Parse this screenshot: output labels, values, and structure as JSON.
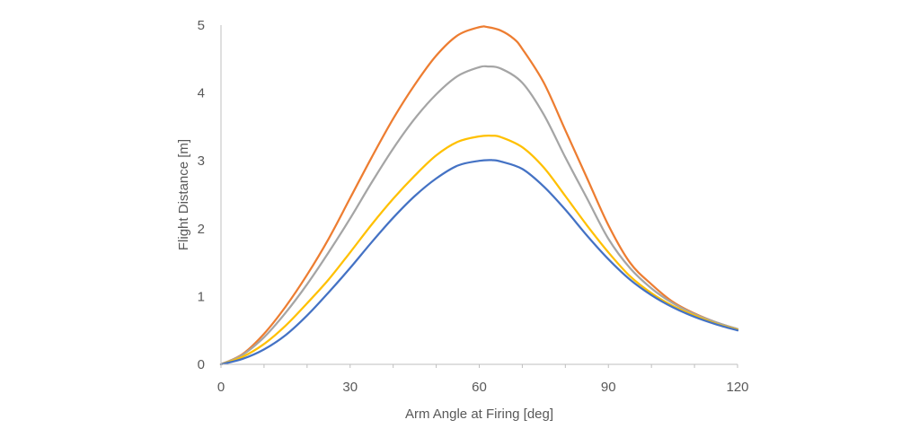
{
  "chart_data": {
    "type": "line",
    "xlabel": "Arm Angle at Firing [deg]",
    "ylabel": "Flight Distance [m]",
    "xlim": [
      0,
      120
    ],
    "ylim": [
      0,
      5
    ],
    "xticks": [
      0,
      30,
      60,
      90,
      120
    ],
    "yticks": [
      0,
      1,
      2,
      3,
      4,
      5
    ],
    "x_minor_step": 10,
    "grid": false,
    "legend": "none",
    "series": [
      {
        "color": "#ED7D31",
        "x": [
          0,
          5,
          10,
          15,
          20,
          25,
          30,
          35,
          40,
          45,
          50,
          55,
          60,
          62,
          65,
          68,
          70,
          75,
          80,
          85,
          90,
          95,
          100,
          105,
          110,
          115,
          120
        ],
        "y": [
          0,
          0.15,
          0.45,
          0.85,
          1.32,
          1.85,
          2.45,
          3.05,
          3.62,
          4.12,
          4.55,
          4.85,
          4.97,
          4.97,
          4.92,
          4.8,
          4.65,
          4.15,
          3.45,
          2.75,
          2.05,
          1.5,
          1.18,
          0.92,
          0.75,
          0.62,
          0.52
        ]
      },
      {
        "color": "#A5A5A5",
        "x": [
          0,
          5,
          10,
          15,
          20,
          25,
          30,
          35,
          40,
          45,
          50,
          55,
          60,
          62,
          65,
          70,
          75,
          80,
          85,
          90,
          95,
          100,
          105,
          110,
          115,
          120
        ],
        "y": [
          0,
          0.14,
          0.4,
          0.76,
          1.18,
          1.65,
          2.15,
          2.68,
          3.18,
          3.62,
          3.98,
          4.25,
          4.38,
          4.39,
          4.36,
          4.15,
          3.68,
          3.05,
          2.45,
          1.85,
          1.42,
          1.12,
          0.9,
          0.74,
          0.62,
          0.52
        ]
      },
      {
        "color": "#FFC000",
        "x": [
          0,
          5,
          10,
          15,
          20,
          25,
          30,
          35,
          40,
          45,
          50,
          55,
          60,
          63,
          65,
          70,
          75,
          80,
          85,
          90,
          95,
          100,
          105,
          110,
          115,
          120
        ],
        "y": [
          0,
          0.11,
          0.3,
          0.57,
          0.9,
          1.25,
          1.65,
          2.06,
          2.44,
          2.78,
          3.08,
          3.28,
          3.36,
          3.37,
          3.35,
          3.2,
          2.9,
          2.48,
          2.05,
          1.65,
          1.3,
          1.05,
          0.86,
          0.72,
          0.6,
          0.51
        ]
      },
      {
        "color": "#4472C4",
        "x": [
          0,
          5,
          10,
          15,
          20,
          25,
          30,
          35,
          40,
          45,
          50,
          55,
          60,
          63,
          65,
          70,
          75,
          80,
          85,
          90,
          95,
          100,
          105,
          110,
          115,
          120
        ],
        "y": [
          0,
          0.08,
          0.22,
          0.43,
          0.72,
          1.06,
          1.42,
          1.8,
          2.16,
          2.48,
          2.74,
          2.93,
          3.0,
          3.01,
          2.99,
          2.88,
          2.62,
          2.28,
          1.9,
          1.55,
          1.25,
          1.02,
          0.84,
          0.7,
          0.59,
          0.5
        ]
      }
    ]
  }
}
